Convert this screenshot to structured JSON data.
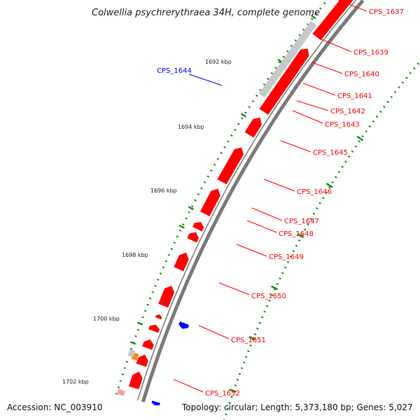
{
  "title": "Colwellia psychrerythraea 34H, complete genome",
  "accession": "Accession: NC_003910",
  "summary": "Topology: circular; Length: 5,373,180 bp; Genes: 5,027",
  "colors": {
    "backbone": "#7a7a7a",
    "forward_gene": "#ff0000",
    "reverse_gene": "#0000ff",
    "highlight_gene": "#ff8c00",
    "other_feature": "#c8c8c8",
    "tick": "#228b22",
    "label_line_red": "#ff0000",
    "label_line_blue": "#0000ff"
  },
  "kbp_ticks": [
    "1692 kbp",
    "1694 kbp",
    "1696 kbp",
    "1698 kbp",
    "1700 kbp",
    "1702 kbp"
  ],
  "gene_labels": [
    {
      "text": "CPS_1637",
      "color": "#ff0000"
    },
    {
      "text": "CPS_1639",
      "color": "#ff0000"
    },
    {
      "text": "CPS_1640",
      "color": "#ff0000"
    },
    {
      "text": "CPS_1641",
      "color": "#ff0000"
    },
    {
      "text": "CPS_1642",
      "color": "#ff0000"
    },
    {
      "text": "CPS_1643",
      "color": "#ff0000"
    },
    {
      "text": "CPS_1644",
      "color": "#0000ff"
    },
    {
      "text": "CPS_1645",
      "color": "#ff0000"
    },
    {
      "text": "CPS_1646",
      "color": "#ff0000"
    },
    {
      "text": "CPS_1647",
      "color": "#ff0000"
    },
    {
      "text": "CPS_1648",
      "color": "#ff0000"
    },
    {
      "text": "CPS_1649",
      "color": "#ff0000"
    },
    {
      "text": "CPS_1650",
      "color": "#ff0000"
    },
    {
      "text": "CPS_1651",
      "color": "#ff0000"
    },
    {
      "text": "CPS_1652",
      "color": "#ff0000"
    }
  ]
}
